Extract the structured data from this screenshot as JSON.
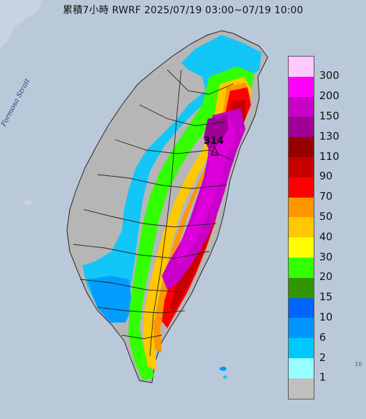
{
  "title": "累積7小時 RWRF 2025/07/19 03:00~07/19 10:00",
  "strait_label": "Formosa Strait",
  "max_value": "314",
  "corner_mark": "10",
  "legend": {
    "labels": [
      "300",
      "200",
      "150",
      "130",
      "110",
      "90",
      "70",
      "50",
      "40",
      "30",
      "20",
      "15",
      "10",
      "6",
      "2",
      "1"
    ],
    "colors": [
      "#ffc8ff",
      "#ff00ff",
      "#c800c8",
      "#a00096",
      "#960000",
      "#c80000",
      "#ff0000",
      "#ff9600",
      "#ffc800",
      "#ffff00",
      "#32ff00",
      "#329600",
      "#0064ff",
      "#0096ff",
      "#00c8ff",
      "#96ffff",
      "#c0c0c0"
    ]
  },
  "rain_colors": {
    "gray": "#b6b6b6",
    "cyan": "#00c8ff",
    "blue": "#0096ff",
    "green": "#32ff00",
    "yellow": "#ffff00",
    "orange": "#ff9600",
    "red": "#ff0000",
    "darkred": "#c80000",
    "purple": "#c800c8",
    "magenta": "#e000e0"
  }
}
